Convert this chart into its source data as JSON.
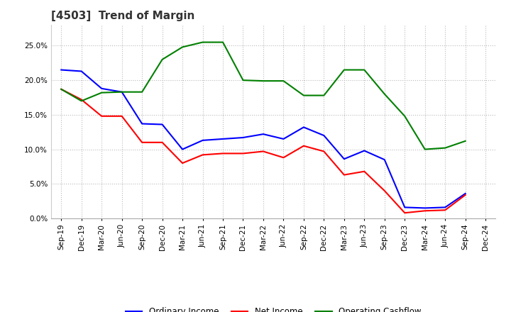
{
  "title": "[4503]  Trend of Margin",
  "x_labels": [
    "Sep-19",
    "Dec-19",
    "Mar-20",
    "Jun-20",
    "Sep-20",
    "Dec-20",
    "Mar-21",
    "Jun-21",
    "Sep-21",
    "Dec-21",
    "Mar-22",
    "Jun-22",
    "Sep-22",
    "Dec-22",
    "Mar-23",
    "Jun-23",
    "Sep-23",
    "Dec-23",
    "Mar-24",
    "Jun-24",
    "Sep-24",
    "Dec-24"
  ],
  "ordinary_income": [
    0.215,
    0.213,
    0.188,
    0.183,
    0.137,
    0.136,
    0.1,
    0.113,
    0.115,
    0.117,
    0.122,
    0.115,
    0.132,
    0.12,
    0.086,
    0.098,
    0.085,
    0.016,
    0.015,
    0.016,
    0.036,
    null
  ],
  "net_income": [
    0.187,
    0.172,
    0.148,
    0.148,
    0.11,
    0.11,
    0.08,
    0.092,
    0.094,
    0.094,
    0.097,
    0.088,
    0.105,
    0.097,
    0.063,
    0.068,
    0.04,
    0.008,
    0.011,
    0.012,
    0.034,
    null
  ],
  "operating_cashflow": [
    0.187,
    0.17,
    0.182,
    0.183,
    0.183,
    0.23,
    0.248,
    0.255,
    0.255,
    0.2,
    0.199,
    0.199,
    0.178,
    0.178,
    0.215,
    0.215,
    0.18,
    0.148,
    0.1,
    0.102,
    0.112,
    null
  ],
  "ylim": [
    0.0,
    0.28
  ],
  "yticks": [
    0.0,
    0.05,
    0.1,
    0.15,
    0.2,
    0.25
  ],
  "line_color_ordinary": "#0000FF",
  "line_color_net": "#FF0000",
  "line_color_cashflow": "#008000",
  "background_color": "#FFFFFF",
  "grid_color": "#AAAAAA",
  "title_fontsize": 11,
  "title_color": "#333333",
  "legend_labels": [
    "Ordinary Income",
    "Net Income",
    "Operating Cashflow"
  ],
  "legend_fontsize": 8.5,
  "tick_fontsize": 7.5
}
